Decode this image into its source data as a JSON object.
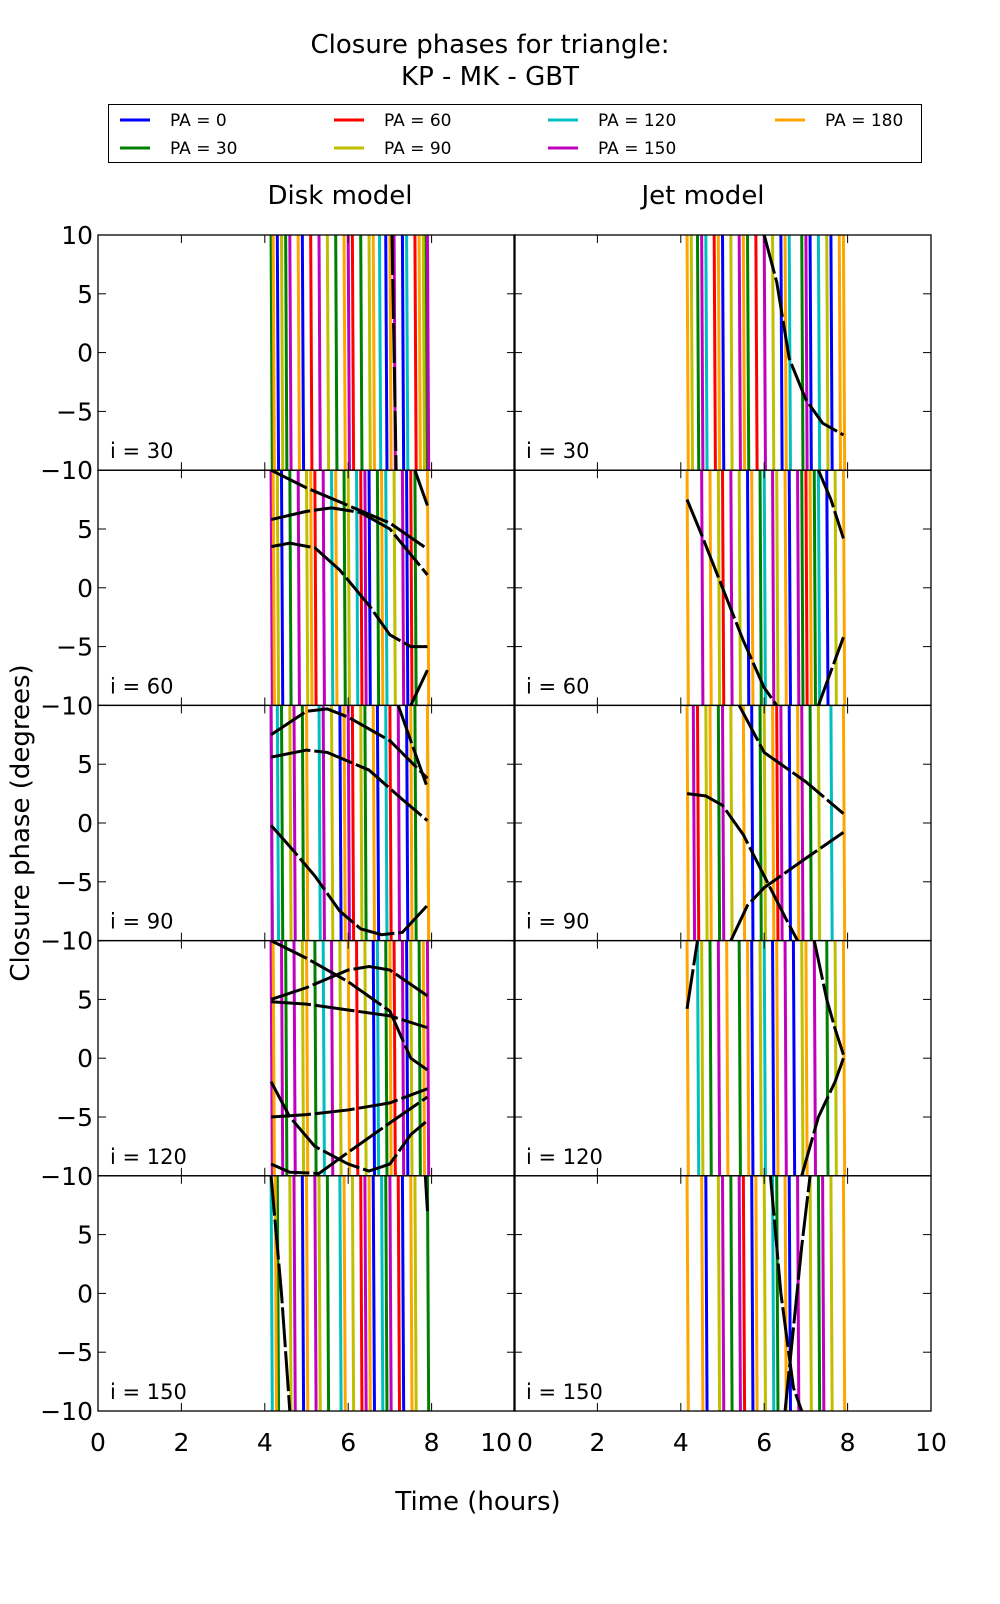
{
  "chart_data": {
    "type": "line",
    "title": [
      "Closure phases for triangle:",
      "KP - MK - GBT"
    ],
    "xlabel": "Time (hours)",
    "ylabel": "Closure phase (degrees)",
    "xlim": [
      0,
      10
    ],
    "ylim": [
      -10,
      10
    ],
    "xticks": [
      "0",
      "2",
      "4",
      "6",
      "8",
      "10"
    ],
    "yticks": [
      "−10",
      "−5",
      "0",
      "5",
      "10"
    ],
    "xtick_values": [
      0,
      2,
      4,
      6,
      8,
      10
    ],
    "ytick_values": [
      -10,
      -5,
      0,
      5,
      10
    ],
    "grid": false,
    "legend_position": "top",
    "legend": [
      {
        "label": "PA = 0",
        "color": "#0000ff"
      },
      {
        "label": "PA = 30",
        "color": "#008000"
      },
      {
        "label": "PA = 60",
        "color": "#ff0000"
      },
      {
        "label": "PA = 90",
        "color": "#bfbf00"
      },
      {
        "label": "PA = 120",
        "color": "#00bfbf"
      },
      {
        "label": "PA = 150",
        "color": "#bf00bf"
      },
      {
        "label": "PA = 180",
        "color": "#ffa500"
      }
    ],
    "columns": [
      "Disk model",
      "Jet model"
    ],
    "rows": [
      "i = 30",
      "i = 60",
      "i = 90",
      "i = 120",
      "i = 150"
    ],
    "panels": [
      {
        "row": 0,
        "col": 0,
        "wraps": [
          [
            4.3,
            4.9,
            6.9,
            7.3
          ],
          [
            4.15,
            4.5,
            5.7,
            6.3,
            7.85
          ],
          [
            5.1,
            6.1,
            7.6
          ],
          [
            4.4,
            5.5,
            6.5,
            7.8
          ],
          [
            6.75,
            7.4
          ],
          [
            4.6,
            5.3,
            6.0,
            7.1,
            7.9
          ],
          [
            4.2,
            4.8,
            5.9,
            6.6,
            7.0,
            7.7
          ]
        ],
        "curves": [
          [
            [
              7.05,
              10
            ],
            [
              7.15,
              -10
            ]
          ]
        ]
      },
      {
        "row": 0,
        "col": 1,
        "wraps": [
          [
            5.0,
            6.4,
            7.1,
            7.6
          ],
          [
            4.4,
            5.6,
            6.9
          ],
          [
            4.8,
            5.8
          ],
          [
            4.25,
            5.2,
            6.2,
            7.5
          ],
          [
            4.6,
            6.6,
            7.3
          ],
          [
            4.5,
            5.4,
            6.0,
            7.0
          ],
          [
            4.15,
            4.9,
            5.5,
            6.5,
            7.8,
            7.9
          ]
        ],
        "curves": [
          [
            [
              6.0,
              10
            ],
            [
              6.3,
              6
            ],
            [
              6.6,
              -0.5
            ],
            [
              7.0,
              -4
            ],
            [
              7.4,
              -6
            ],
            [
              7.9,
              -7
            ]
          ]
        ]
      },
      {
        "row": 1,
        "col": 0,
        "wraps": [
          [
            4.4,
            6.5,
            7.4
          ],
          [
            4.6,
            5.9,
            6.7,
            7.6
          ],
          [
            5.2,
            6.3,
            7.5
          ],
          [
            4.3,
            5.0,
            6.0,
            7.1
          ],
          [
            5.6,
            6.2,
            6.9
          ],
          [
            4.15,
            4.8,
            5.4,
            6.4,
            7.3
          ],
          [
            4.2,
            5.1,
            5.7,
            6.8,
            7.9
          ]
        ],
        "curves": [
          [
            [
              4.15,
              10
            ],
            [
              5,
              8.5
            ],
            [
              6,
              7
            ],
            [
              7,
              5.5
            ],
            [
              7.9,
              3.3
            ]
          ],
          [
            [
              4.15,
              5.8
            ],
            [
              5,
              6.5
            ],
            [
              5.6,
              6.8
            ],
            [
              6.3,
              6.4
            ],
            [
              7,
              5
            ],
            [
              7.9,
              1.1
            ]
          ],
          [
            [
              4.15,
              3.5
            ],
            [
              4.6,
              3.8
            ],
            [
              5.2,
              3.4
            ],
            [
              5.8,
              1.5
            ],
            [
              6.5,
              -1.5
            ],
            [
              7,
              -4
            ],
            [
              7.5,
              -5
            ],
            [
              7.9,
              -5
            ]
          ],
          [
            [
              7.5,
              -10
            ],
            [
              7.9,
              -7
            ]
          ],
          [
            [
              7.6,
              10
            ],
            [
              7.9,
              7
            ]
          ]
        ]
      },
      {
        "row": 1,
        "col": 1,
        "wraps": [
          [
            5.6,
            6.6,
            7.5
          ],
          [
            5.9,
            6.9,
            7.2
          ],
          [
            5.0,
            7.0
          ],
          [
            4.9,
            5.4,
            6.3,
            7.7
          ],
          [
            6.0,
            7.3
          ],
          [
            4.5,
            5.2,
            6.2,
            6.8
          ],
          [
            4.15,
            4.7,
            5.7,
            6.5,
            7.1,
            7.9
          ]
        ],
        "curves": [
          [
            [
              4.15,
              7.5
            ],
            [
              4.5,
              4.5
            ],
            [
              5,
              0
            ],
            [
              5.5,
              -4.5
            ],
            [
              6,
              -8.5
            ],
            [
              6.3,
              -10
            ]
          ],
          [
            [
              7.3,
              10
            ],
            [
              7.6,
              7.5
            ],
            [
              7.9,
              4.2
            ]
          ],
          [
            [
              7.3,
              -10
            ],
            [
              7.9,
              -4.2
            ]
          ]
        ]
      },
      {
        "row": 2,
        "col": 0,
        "wraps": [
          [
            5.8,
            6.7,
            7.4
          ],
          [
            4.4,
            4.9,
            6.4,
            7.6
          ],
          [
            6.1,
            7.0
          ],
          [
            4.6,
            5.6,
            6.3,
            7.9
          ],
          [
            4.15,
            4.3,
            5.3,
            6.9
          ],
          [
            4.15,
            4.7,
            5.4,
            6.0,
            7.2
          ],
          [
            5.0,
            5.9,
            6.6,
            7.5,
            7.9
          ]
        ],
        "curves": [
          [
            [
              4.15,
              7.5
            ],
            [
              5,
              9.5
            ],
            [
              5.5,
              9.7
            ],
            [
              6,
              9
            ],
            [
              7,
              7
            ],
            [
              7.9,
              3.8
            ]
          ],
          [
            [
              4.15,
              5.6
            ],
            [
              5,
              6.2
            ],
            [
              5.5,
              6
            ],
            [
              6.5,
              4.5
            ],
            [
              7.3,
              2
            ],
            [
              7.9,
              0.2
            ]
          ],
          [
            [
              4.15,
              -0.2
            ],
            [
              4.6,
              -2
            ],
            [
              5.2,
              -4.5
            ],
            [
              5.8,
              -7.5
            ],
            [
              6.3,
              -9
            ],
            [
              6.8,
              -9.5
            ],
            [
              7.3,
              -9.3
            ],
            [
              7.9,
              -7
            ]
          ],
          [
            [
              7.2,
              10
            ],
            [
              7.9,
              3
            ]
          ]
        ]
      },
      {
        "row": 2,
        "col": 1,
        "wraps": [
          [
            5.7,
            6.6
          ],
          [
            4.9,
            5.9,
            7.1
          ],
          [
            4.4,
            6.3
          ],
          [
            4.6,
            5.2,
            6.0,
            7.3
          ],
          [
            7.6
          ],
          [
            4.3,
            5.0,
            6.4,
            6.9
          ],
          [
            4.15,
            4.7,
            5.5,
            6.2,
            6.8,
            7.9
          ]
        ],
        "curves": [
          [
            [
              4.15,
              2.5
            ],
            [
              4.6,
              2.3
            ],
            [
              5,
              1.5
            ],
            [
              5.5,
              -1
            ],
            [
              6,
              -4.5
            ],
            [
              6.5,
              -8
            ],
            [
              6.8,
              -10
            ]
          ],
          [
            [
              5.4,
              10
            ],
            [
              6,
              6
            ],
            [
              7,
              3.5
            ],
            [
              7.9,
              0.8
            ]
          ],
          [
            [
              5.2,
              -10
            ],
            [
              5.6,
              -7
            ],
            [
              6,
              -5.5
            ],
            [
              7,
              -3
            ],
            [
              7.9,
              -0.8
            ]
          ]
        ]
      },
      {
        "row": 3,
        "col": 0,
        "wraps": [
          [
            6.6,
            7.4
          ],
          [
            4.5,
            5.2,
            6.9,
            7.7
          ],
          [
            6.2,
            7.1
          ],
          [
            4.9,
            5.8,
            6.4,
            7.5
          ],
          [
            5.4,
            6.7
          ],
          [
            4.15,
            4.4,
            4.7,
            5.6,
            7.3,
            7.9
          ],
          [
            4.2,
            5.0,
            6.0,
            7.0,
            7.8
          ]
        ],
        "curves": [
          [
            [
              4.15,
              -5
            ],
            [
              5,
              -4.8
            ],
            [
              6,
              -4.4
            ],
            [
              7,
              -3.8
            ],
            [
              7.9,
              -2.6
            ]
          ],
          [
            [
              4.15,
              4.8
            ],
            [
              5,
              4.6
            ],
            [
              6,
              4.1
            ],
            [
              7,
              3.6
            ],
            [
              7.9,
              2.6
            ]
          ],
          [
            [
              4.15,
              5
            ],
            [
              5,
              6
            ],
            [
              6,
              7.5
            ],
            [
              6.5,
              7.8
            ],
            [
              7,
              7.5
            ],
            [
              7.9,
              5.3
            ]
          ],
          [
            [
              4.15,
              -2
            ],
            [
              4.6,
              -5
            ],
            [
              5.2,
              -7.5
            ],
            [
              6,
              -9
            ],
            [
              6.5,
              -9.6
            ],
            [
              7,
              -9
            ],
            [
              7.5,
              -6.5
            ],
            [
              7.9,
              -5.3
            ]
          ],
          [
            [
              4.15,
              -9
            ],
            [
              4.6,
              -9.7
            ],
            [
              5.3,
              -9.8
            ],
            [
              6,
              -8
            ],
            [
              7,
              -5.5
            ],
            [
              7.9,
              -3.3
            ]
          ],
          [
            [
              4.15,
              10
            ],
            [
              5,
              8.5
            ],
            [
              6,
              6.5
            ],
            [
              7,
              4
            ],
            [
              7.5,
              0
            ],
            [
              7.9,
              -1
            ]
          ]
        ]
      },
      {
        "row": 3,
        "col": 1,
        "wraps": [
          [
            5.7,
            6.2,
            6.7
          ],
          [
            4.7,
            5.4,
            7.5
          ],
          [],
          [
            4.5,
            5.9,
            6.9,
            7.7
          ],
          [
            4.4,
            6.0
          ],
          [
            4.9,
            6.5,
            7.2
          ],
          [
            4.15,
            5.1,
            5.6,
            6.3,
            7.0,
            7.9
          ]
        ],
        "curves": [
          [
            [
              4.15,
              4.2
            ],
            [
              4.4,
              10
            ]
          ],
          [
            [
              7.2,
              10
            ],
            [
              7.5,
              5
            ],
            [
              7.7,
              2.5
            ],
            [
              7.9,
              0.3
            ]
          ],
          [
            [
              6.9,
              -10
            ],
            [
              7.3,
              -5
            ],
            [
              7.7,
              -2
            ],
            [
              7.9,
              0
            ]
          ]
        ]
      },
      {
        "row": 4,
        "col": 0,
        "wraps": [
          [
            4.9,
            6.6,
            7.3
          ],
          [
            4.3,
            5.5,
            6.9,
            7.9
          ],
          [
            6.3,
            7.2
          ],
          [
            4.6,
            5.3,
            6.1,
            7.6
          ],
          [
            4.15,
            5.8,
            6.8
          ],
          [
            4.7,
            5.2,
            6.4,
            7.0
          ],
          [
            4.25,
            5.0,
            5.9,
            6.5,
            7.5
          ]
        ],
        "curves": [
          [
            [
              4.15,
              10
            ],
            [
              4.4,
              0
            ],
            [
              4.6,
              -10
            ]
          ],
          [
            [
              7.85,
              10
            ],
            [
              7.9,
              7
            ]
          ]
        ]
      },
      {
        "row": 4,
        "col": 1,
        "wraps": [
          [
            4.6,
            5.7,
            6.6
          ],
          [
            5.2,
            6.3,
            7.3
          ],
          [
            5.5
          ],
          [
            4.9,
            6.0,
            7.1,
            7.6
          ],
          [
            6.2
          ],
          [
            5.0,
            5.4,
            6.8,
            7.4
          ],
          [
            4.15,
            4.5,
            5.8,
            6.5,
            7.9
          ]
        ],
        "curves": [
          [
            [
              6.15,
              10
            ],
            [
              6.4,
              0
            ],
            [
              6.7,
              -8
            ],
            [
              6.9,
              -10
            ]
          ],
          [
            [
              6.5,
              -10
            ],
            [
              6.7,
              -3
            ],
            [
              6.9,
              4
            ],
            [
              7.1,
              10
            ]
          ]
        ]
      }
    ]
  }
}
